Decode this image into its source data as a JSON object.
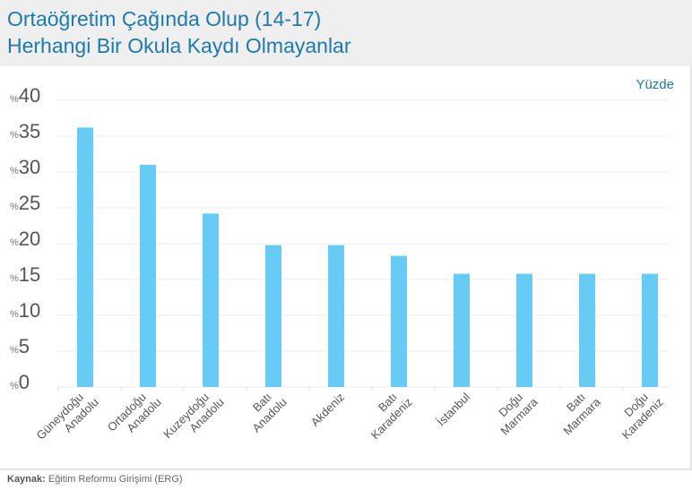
{
  "title_line1": "Ortaöğretim Çağında Olup (14-17)",
  "title_line2": "Herhangi Bir Okula Kaydı Olmayanlar",
  "unit_label": "Yüzde",
  "source_key": "Kaynak:",
  "source_text": " Eğitim Reformu Girişimi (ERG)",
  "bar_color": "#66ccf5",
  "chart_data": {
    "type": "bar",
    "title": "Ortaöğretim Çağında Olup (14-17) Herhangi Bir Okula Kaydı Olmayanlar",
    "ylabel": "Yüzde",
    "xlabel": "",
    "ylim": [
      0,
      40
    ],
    "grid": true,
    "tick_prefix": "%",
    "yticks": [
      0,
      5,
      10,
      15,
      20,
      25,
      30,
      35,
      40
    ],
    "categories": [
      [
        "Güneydoğu",
        "Anadolu"
      ],
      [
        "Ortadoğu",
        "Anadolu"
      ],
      [
        "Kuzeydoğu",
        "Anadolu"
      ],
      [
        "Batı",
        "Anadolu"
      ],
      [
        "Akdeniz"
      ],
      [
        "Batı",
        "Karadeniz"
      ],
      [
        "İstanbul"
      ],
      [
        "Doğu",
        "Marmara"
      ],
      [
        "Batı",
        "Marmara"
      ],
      [
        "Doğu",
        "Karadeniz"
      ]
    ],
    "values": [
      36.2,
      31.0,
      24.2,
      19.8,
      19.8,
      18.3,
      15.8,
      15.8,
      15.8,
      15.8
    ]
  }
}
